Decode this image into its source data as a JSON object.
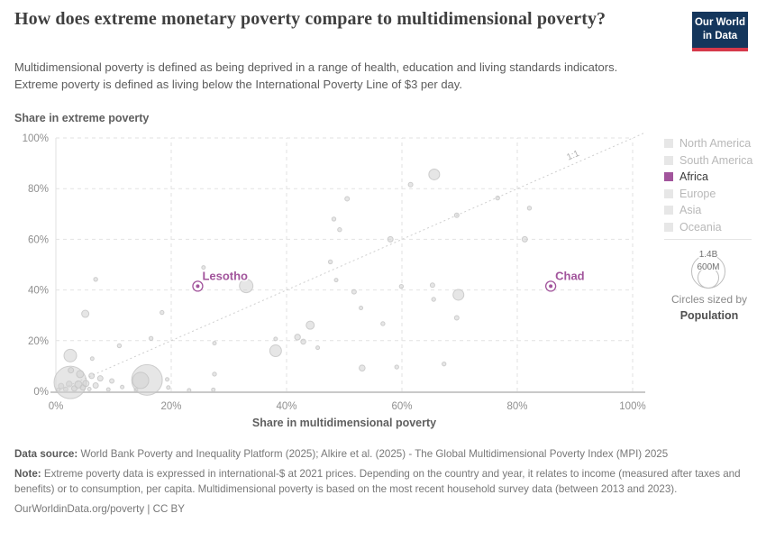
{
  "header": {
    "title": "How does extreme monetary poverty compare to multidimensional poverty?",
    "subtitle_line1": "Multidimensional poverty is defined as being deprived in a range of health, education and living standards indicators.",
    "subtitle_line2": "Extreme poverty is defined as living below the International Poverty Line of $3 per day.",
    "logo": {
      "line1": "Our World",
      "line2": "in Data"
    }
  },
  "chart_data": {
    "type": "scatter",
    "xlabel": "Share in multidimensional poverty",
    "ylabel": "Share in extreme poverty",
    "xlim": [
      0,
      100
    ],
    "ylim": [
      0,
      100
    ],
    "grid": true,
    "x_ticks": [
      "0%",
      "20%",
      "40%",
      "60%",
      "80%",
      "100%"
    ],
    "y_ticks": [
      "0%",
      "20%",
      "40%",
      "60%",
      "80%",
      "100%"
    ],
    "diagonal_label": "1:1",
    "bubble_color": "#d2d2d2",
    "bubble_stroke": "#c3c3c3",
    "highlight_color": "#a2559c",
    "labeled_points": [
      {
        "name": "Lesotho",
        "x": 24.6,
        "y": 41.5
      },
      {
        "name": "Chad",
        "x": 85.8,
        "y": 41.5
      }
    ],
    "points": [
      [
        0.4,
        0.6,
        2
      ],
      [
        0.9,
        2.1,
        3
      ],
      [
        1.7,
        0.8,
        2.5
      ],
      [
        2.3,
        2.9,
        3.2
      ],
      [
        2.5,
        3.5,
        18
      ],
      [
        3.2,
        1.1,
        3
      ],
      [
        3.9,
        2.7,
        4
      ],
      [
        4.2,
        6.8,
        4
      ],
      [
        4.7,
        1.5,
        3
      ],
      [
        5.2,
        3.1,
        3.5
      ],
      [
        5.8,
        0.9,
        2
      ],
      [
        6.2,
        6.1,
        3
      ],
      [
        6.9,
        2.3,
        3
      ],
      [
        2.6,
        8.3,
        3
      ],
      [
        7.7,
        5.1,
        3
      ],
      [
        9.1,
        0.7,
        2
      ],
      [
        9.7,
        4.1,
        2.5
      ],
      [
        11.5,
        1.7,
        2
      ],
      [
        13.9,
        0.5,
        2
      ],
      [
        15.8,
        4.5,
        17
      ],
      [
        14.7,
        4.3,
        9
      ],
      [
        19.3,
        4.7,
        2
      ],
      [
        19.5,
        1.5,
        2
      ],
      [
        23.1,
        0.4,
        2
      ],
      [
        27.3,
        0.6,
        2
      ],
      [
        27.5,
        6.8,
        2.2
      ],
      [
        27.5,
        19,
        2
      ],
      [
        2.5,
        14.1,
        7
      ],
      [
        5.1,
        30.6,
        4
      ],
      [
        6.9,
        44.2,
        2.2
      ],
      [
        6.3,
        12.9,
        2
      ],
      [
        11,
        18,
        2.2
      ],
      [
        16.5,
        20.9,
        2.2
      ],
      [
        18.4,
        31.1,
        2.2
      ],
      [
        25.6,
        48.9,
        2
      ],
      [
        33,
        41.6,
        7.5
      ],
      [
        38.1,
        16,
        6.5
      ],
      [
        38.1,
        20.7,
        2
      ],
      [
        41.9,
        21.4,
        3.2
      ],
      [
        42.9,
        19.6,
        2.8
      ],
      [
        44.1,
        26.1,
        4.5
      ],
      [
        45.4,
        17.2,
        2
      ],
      [
        47.6,
        51.1,
        2.2
      ],
      [
        48.2,
        68,
        2.2
      ],
      [
        48.6,
        43.9,
        2
      ],
      [
        49.2,
        63.8,
        2.2
      ],
      [
        50.5,
        76,
        2.5
      ],
      [
        51.7,
        39.3,
        2.5
      ],
      [
        52.9,
        32.9,
        2
      ],
      [
        53.1,
        9.2,
        3.3
      ],
      [
        56.7,
        26.7,
        2.2
      ],
      [
        58,
        60,
        3
      ],
      [
        59.1,
        9.6,
        2.2
      ],
      [
        59.9,
        41.4,
        2.2
      ],
      [
        61.5,
        81.6,
        2.5
      ],
      [
        65.3,
        41.9,
        2.5
      ],
      [
        65.5,
        36.3,
        2.2
      ],
      [
        65.6,
        85.6,
        6
      ],
      [
        67.3,
        10.8,
        2.2
      ],
      [
        69.5,
        29,
        2.5
      ],
      [
        69.5,
        69.5,
        2.5
      ],
      [
        69.8,
        38.1,
        6
      ],
      [
        76.6,
        76.3,
        2.2
      ],
      [
        81.3,
        60,
        3
      ],
      [
        82.1,
        72.3,
        2.2
      ]
    ]
  },
  "legend": {
    "items": [
      {
        "label": "North America",
        "color": "#e7e7e7",
        "active": false
      },
      {
        "label": "South America",
        "color": "#e7e7e7",
        "active": false
      },
      {
        "label": "Africa",
        "color": "#a2559c",
        "active": true
      },
      {
        "label": "Europe",
        "color": "#e7e7e7",
        "active": false
      },
      {
        "label": "Asia",
        "color": "#e7e7e7",
        "active": false
      },
      {
        "label": "Oceania",
        "color": "#e7e7e7",
        "active": false
      }
    ],
    "size_legend": {
      "outer_label": "1.4B",
      "inner_label": "600M",
      "caption": "Circles sized by",
      "caption_bold": "Population"
    }
  },
  "footer": {
    "source_label": "Data source:",
    "source_text": " World Bank Poverty and Inequality Platform (2025); Alkire et al. (2025) - The Global Multidimensional Poverty Index (MPI) 2025",
    "note_label": "Note:",
    "note_text": " Extreme poverty data is expressed in international-$ at 2021 prices. Depending on the country and year, it relates to income (measured after taxes and benefits) or to consumption, per capita. Multidimensional poverty is based on the most recent household survey data (between 2013 and 2023).",
    "link": "OurWorldinData.org/poverty | CC BY"
  }
}
